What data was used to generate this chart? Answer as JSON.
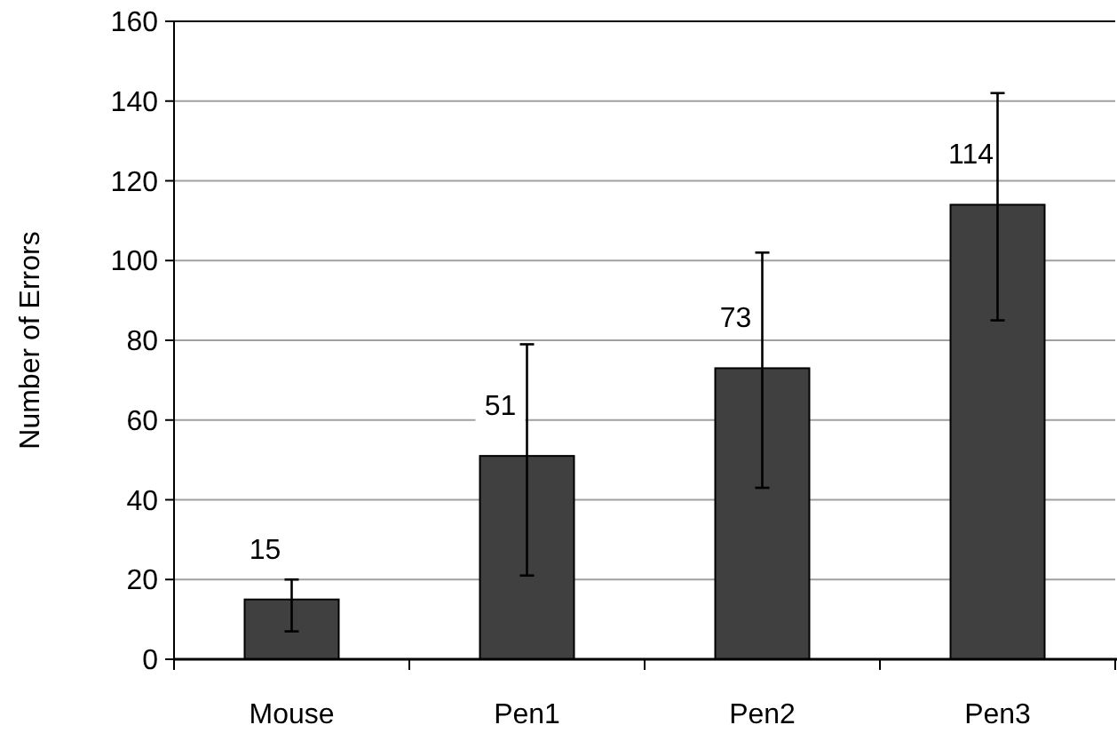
{
  "chart_data": {
    "type": "bar",
    "ylabel": "Number of Errors",
    "categories": [
      "Mouse",
      "Pen1",
      "Pen2",
      "Pen3"
    ],
    "values": [
      15,
      51,
      73,
      114
    ],
    "color": "#404040",
    "errors": [
      [
        7,
        20
      ],
      [
        21,
        79
      ],
      [
        43,
        102
      ],
      [
        85,
        142
      ]
    ],
    "ylim": [
      0,
      160
    ],
    "yticks": [
      0,
      20,
      40,
      60,
      80,
      100,
      120,
      140,
      160
    ],
    "grid": "y",
    "data_labels": true
  }
}
